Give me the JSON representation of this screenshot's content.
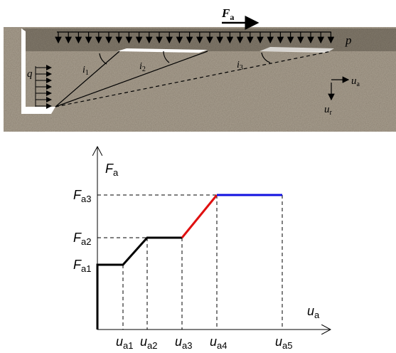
{
  "top_figure": {
    "load": {
      "main": "F",
      "sub": "a"
    },
    "p": "p",
    "q": "q",
    "angles": [
      {
        "main": "i",
        "sub": "1"
      },
      {
        "main": "i",
        "sub": "2"
      },
      {
        "main": "i",
        "sub": "3"
      }
    ],
    "ua": {
      "main": "u",
      "sub": "a"
    },
    "ur": {
      "main": "u",
      "sub": "r"
    }
  },
  "plot": {
    "y_axis": {
      "main": "F",
      "sub": "a"
    },
    "x_axis": {
      "main": "u",
      "sub": "a"
    },
    "y_labels": [
      {
        "main": "F",
        "sub": "a1"
      },
      {
        "main": "F",
        "sub": "a2"
      },
      {
        "main": "F",
        "sub": "a3"
      }
    ],
    "x_labels": [
      {
        "main": "u",
        "sub": "a1"
      },
      {
        "main": "u",
        "sub": "a2"
      },
      {
        "main": "u",
        "sub": "a3"
      },
      {
        "main": "u",
        "sub": "a4"
      },
      {
        "main": "u",
        "sub": "a5"
      }
    ]
  }
}
